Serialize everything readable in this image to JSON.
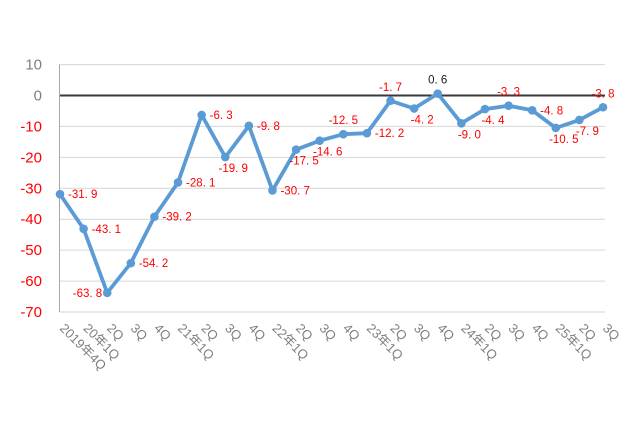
{
  "chart_data": {
    "type": "line",
    "title": "",
    "xlabel": "",
    "ylabel": "",
    "ylim": [
      -70,
      10
    ],
    "yticks": [
      10,
      0,
      -10,
      -20,
      -30,
      -40,
      -50,
      -60,
      -70
    ],
    "grid": true,
    "legend": false,
    "categories": [
      "2019年4Q",
      "20年1Q",
      "2Q",
      "3Q",
      "4Q",
      "21年1Q",
      "2Q",
      "3Q",
      "4Q",
      "22年1Q",
      "2Q",
      "3Q",
      "4Q",
      "23年1Q",
      "2Q",
      "3Q",
      "4Q",
      "24年1Q",
      "2Q",
      "3Q",
      "4Q",
      "25年1Q",
      "2Q",
      "3Q"
    ],
    "series": [
      {
        "name": "",
        "values": [
          -31.9,
          -43.1,
          -63.8,
          -54.2,
          -39.2,
          -28.1,
          -6.3,
          -19.9,
          -9.8,
          -30.7,
          -17.5,
          -14.6,
          -12.5,
          -12.2,
          -1.7,
          -4.2,
          0.6,
          -9.0,
          -4.4,
          -3.3,
          -4.8,
          -10.5,
          -7.9,
          -3.8
        ]
      }
    ],
    "data_label_positions": [
      "right",
      "right",
      "left",
      "right",
      "right",
      "right",
      "right",
      "below",
      "right",
      "right",
      "below",
      "below",
      "above",
      "right",
      "above",
      "below",
      "above",
      "below",
      "below",
      "above",
      "right",
      "below",
      "below",
      "above"
    ],
    "x_axis_label_rotation_deg": 45,
    "colors": {
      "line": "#5B9BD5",
      "marker": "#5B9BD5",
      "data_label_negative": "#FF0000",
      "data_label_nonnegative": "#1A1A1A",
      "axis_text": "#7F7F7F",
      "y_axis_negative_text": "#FF0000",
      "gridline": "#D6D6D6",
      "zero_line": "#3A3A3A",
      "axis_line": "#A6A6A6",
      "background": "#FFFFFF"
    }
  }
}
